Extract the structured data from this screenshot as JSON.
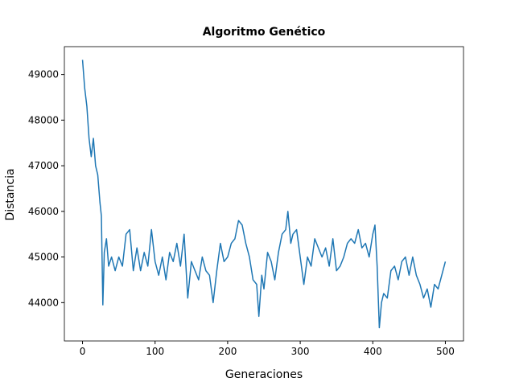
{
  "chart_data": {
    "type": "line",
    "title": "Algoritmo Genético",
    "x_label": "Generaciones",
    "y_label": "Distancia",
    "color": "#1f77b4",
    "grid": false,
    "x": [
      0,
      3,
      6,
      9,
      12,
      15,
      18,
      21,
      24,
      26,
      28,
      30,
      33,
      36,
      40,
      45,
      50,
      55,
      60,
      65,
      70,
      75,
      80,
      85,
      90,
      95,
      100,
      105,
      110,
      115,
      120,
      125,
      130,
      135,
      140,
      145,
      150,
      155,
      160,
      165,
      170,
      175,
      180,
      185,
      190,
      195,
      200,
      205,
      210,
      215,
      220,
      225,
      230,
      235,
      240,
      243,
      247,
      250,
      255,
      260,
      265,
      270,
      275,
      280,
      283,
      287,
      290,
      295,
      300,
      305,
      310,
      315,
      320,
      325,
      330,
      335,
      340,
      345,
      350,
      355,
      360,
      365,
      370,
      375,
      380,
      385,
      390,
      395,
      400,
      403,
      406,
      409,
      412,
      415,
      420,
      425,
      430,
      435,
      440,
      445,
      450,
      455,
      460,
      465,
      470,
      475,
      480,
      485,
      490,
      495,
      500
    ],
    "values": [
      49320,
      48700,
      48300,
      47600,
      47200,
      47600,
      47000,
      46800,
      46200,
      45900,
      43950,
      45100,
      45400,
      44800,
      45000,
      44700,
      45000,
      44800,
      45500,
      45600,
      44700,
      45200,
      44700,
      45100,
      44800,
      45600,
      44900,
      44600,
      45000,
      44500,
      45100,
      44900,
      45300,
      44800,
      45500,
      44100,
      44900,
      44700,
      44500,
      45000,
      44700,
      44600,
      44000,
      44700,
      45300,
      44900,
      45000,
      45300,
      45400,
      45800,
      45700,
      45300,
      45000,
      44500,
      44400,
      43700,
      44600,
      44300,
      45100,
      44900,
      44500,
      45100,
      45500,
      45600,
      46000,
      45300,
      45500,
      45600,
      45000,
      44400,
      45000,
      44800,
      45400,
      45200,
      45000,
      45200,
      44800,
      45400,
      44700,
      44800,
      45000,
      45300,
      45400,
      45300,
      45600,
      45200,
      45300,
      45000,
      45500,
      45700,
      44800,
      43450,
      44000,
      44200,
      44100,
      44700,
      44800,
      44500,
      44900,
      45000,
      44600,
      45000,
      44600,
      44400,
      44100,
      44300,
      43900,
      44400,
      44300,
      44600,
      44900
    ],
    "xlim": [
      -25,
      525
    ],
    "ylim": [
      43160,
      49610
    ],
    "xticks": [
      0,
      100,
      200,
      300,
      400,
      500
    ],
    "yticks": [
      44000,
      45000,
      46000,
      47000,
      48000,
      49000
    ]
  }
}
